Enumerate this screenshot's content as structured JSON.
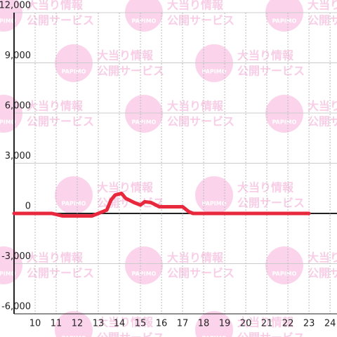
{
  "chart_data": {
    "type": "line",
    "watermark": {
      "line1": "大当り情報",
      "line2": "公開サービス",
      "logo": "PAPIMO"
    },
    "x": [
      9,
      10.8,
      11.3,
      12.7,
      13,
      13.4,
      13.6,
      13.8,
      14.1,
      14.3,
      14.7,
      15,
      15.2,
      15.5,
      15.9,
      17,
      17.3,
      17.5,
      23
    ],
    "series": [
      {
        "color": "#e8283c",
        "values": [
          0,
          0,
          -150,
          -150,
          0,
          200,
          800,
          1100,
          1200,
          900,
          650,
          500,
          700,
          650,
          400,
          400,
          100,
          0,
          0
        ]
      }
    ],
    "xlim": [
      9,
      24.33
    ],
    "xticks": [
      10,
      11,
      12,
      13,
      14,
      15,
      16,
      17,
      18,
      19,
      20,
      21,
      22,
      23,
      24
    ],
    "ylim": [
      -6000,
      12000
    ],
    "yticks": [
      {
        "value": -6000,
        "label": "-6,000"
      },
      {
        "value": -3000,
        "label": "-3,000"
      },
      0,
      {
        "value": 3000,
        "label": "3,000"
      },
      {
        "value": 6000,
        "label": "6,000"
      },
      {
        "value": 9000,
        "label": "9,000"
      },
      {
        "value": 12000,
        "label": "12,000"
      }
    ],
    "grid": true
  }
}
